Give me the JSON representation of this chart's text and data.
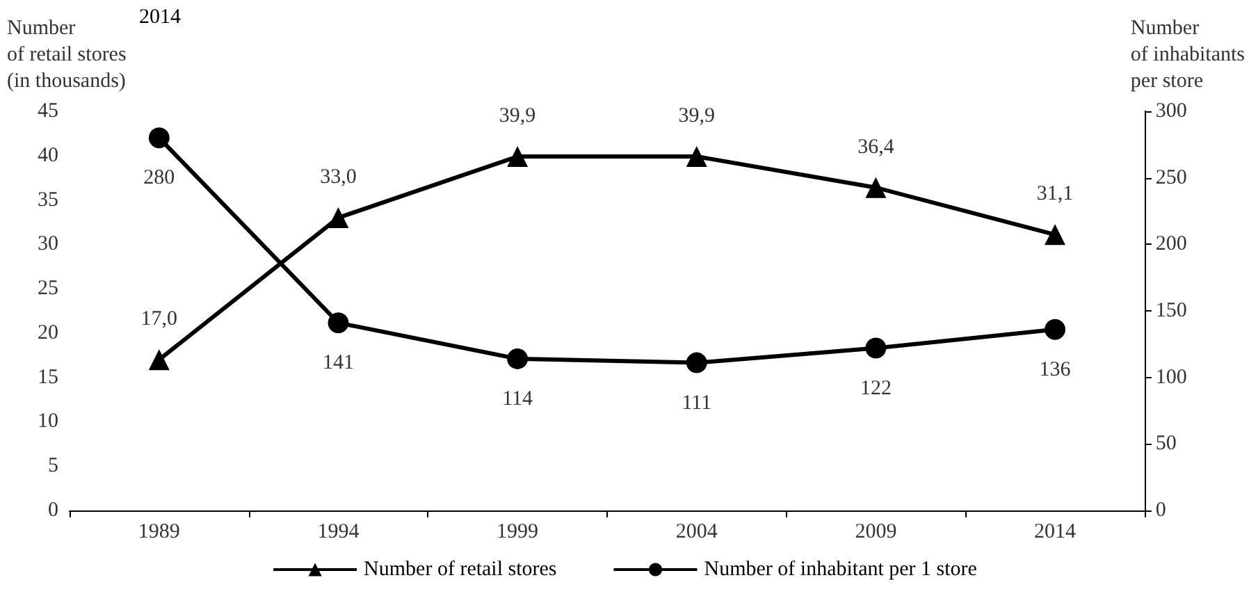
{
  "chart_data": {
    "type": "line",
    "title": "2014",
    "categories": [
      "1989",
      "1994",
      "1999",
      "2004",
      "2009",
      "2014"
    ],
    "ylabel": "Number\nof retail stores\n(in thousands)",
    "y2label": "Number\nof inhabitants\nper store",
    "series": [
      {
        "name": "Number of retail stores",
        "color": "#000000",
        "marker": "triangle",
        "values": [
          17.0,
          33.0,
          39.9,
          39.9,
          36.4,
          31.1
        ],
        "value_labels": [
          "17,0",
          "33,0",
          "39,9",
          "39,9",
          "36,4",
          "31,1"
        ]
      },
      {
        "name": "Number of inhabitant per 1 store",
        "color": "#000000",
        "marker": "circle",
        "axis": "y2",
        "values": [
          280,
          141,
          114,
          111,
          122,
          136
        ],
        "value_labels": [
          "280",
          "141",
          "114",
          "111",
          "122",
          "136"
        ]
      }
    ],
    "ylim": [
      0,
      45
    ],
    "yticks": [
      0,
      5,
      10,
      15,
      20,
      25,
      30,
      35,
      40,
      45
    ],
    "y2lim": [
      0,
      300
    ],
    "y2ticks": [
      0,
      50,
      100,
      150,
      200,
      250,
      300
    ],
    "legend": "bottom",
    "grid": false
  }
}
